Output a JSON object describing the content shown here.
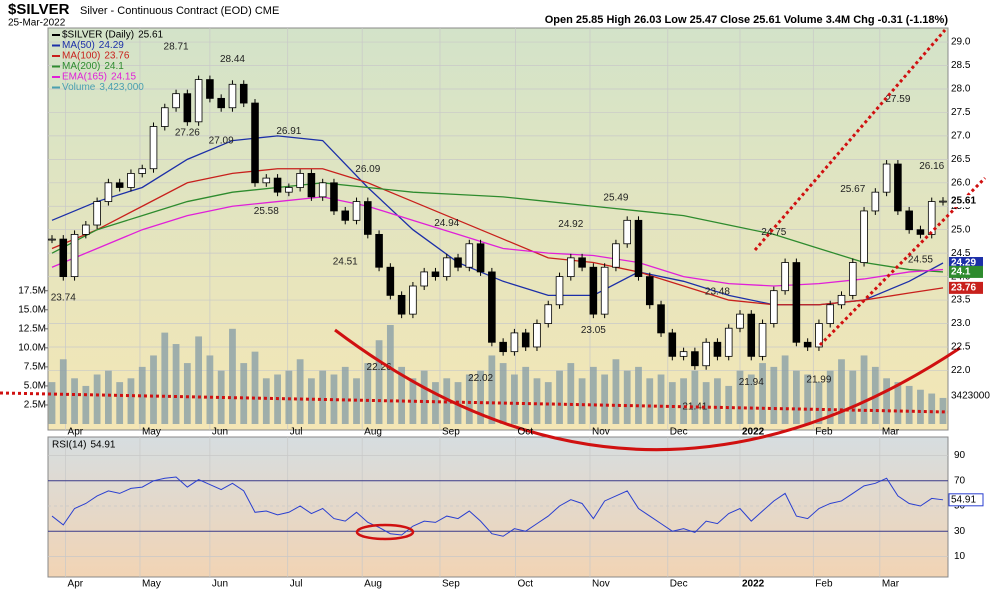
{
  "chart_data": {
    "type": "candlestick",
    "title": "$SILVER",
    "subtitle": "Silver - Continuous Contract (EOD) CME",
    "date": "25-Mar-2022",
    "quote": "Open 25.85  High 26.03  Low 25.47  Close 25.61  Volume 3.4M  Chg -0.31 (-1.18%)",
    "xlim": [
      0,
      79
    ],
    "xticks": [
      {
        "value": 1.2,
        "label": "Apr"
      },
      {
        "value": 7.8,
        "label": "May"
      },
      {
        "value": 14,
        "label": "Jun"
      },
      {
        "value": 20.9,
        "label": "Jul"
      },
      {
        "value": 27.5,
        "label": "Aug"
      },
      {
        "value": 34.4,
        "label": "Sep"
      },
      {
        "value": 41.1,
        "label": "Oct"
      },
      {
        "value": 47.7,
        "label": "Nov"
      },
      {
        "value": 54.6,
        "label": "Dec"
      },
      {
        "value": 61,
        "label": "2022"
      },
      {
        "value": 67.5,
        "label": "Feb"
      },
      {
        "value": 73.4,
        "label": "Mar"
      }
    ],
    "ylim": [
      20.73,
      29.3
    ],
    "yticks": [
      {
        "value": 22,
        "label": "22.0"
      },
      22.5,
      {
        "value": 23,
        "label": "23.0"
      },
      23.5,
      {
        "value": 24,
        "label": "24.0"
      },
      24.5,
      {
        "value": 25,
        "label": "25.0"
      },
      25.5,
      {
        "value": 26,
        "label": "26.0"
      },
      26.5,
      {
        "value": 27,
        "label": "27.0"
      },
      27.5,
      {
        "value": 28,
        "label": "28.0"
      },
      28.5,
      {
        "value": 29,
        "label": "29.0"
      }
    ],
    "grid": true,
    "price": {
      "name": "$SILVER (Daily)",
      "last": 25.61,
      "up_color": "#ffffff",
      "down_color": "#000000",
      "values": [
        24.8,
        24.0,
        24.9,
        25.1,
        25.6,
        26.0,
        25.9,
        26.2,
        26.3,
        27.2,
        27.6,
        27.9,
        27.3,
        28.2,
        27.8,
        27.6,
        28.1,
        27.7,
        26.0,
        26.1,
        25.8,
        25.9,
        26.2,
        25.7,
        26.0,
        25.4,
        25.2,
        25.6,
        24.9,
        24.2,
        23.6,
        23.2,
        23.8,
        24.1,
        24.0,
        24.4,
        24.2,
        24.7,
        24.1,
        22.6,
        22.4,
        22.8,
        22.5,
        23.0,
        23.4,
        24.0,
        24.4,
        24.2,
        23.2,
        24.2,
        24.7,
        25.2,
        24.0,
        23.4,
        22.8,
        22.3,
        22.4,
        22.1,
        22.6,
        22.3,
        22.9,
        23.2,
        22.3,
        23.0,
        23.7,
        24.3,
        22.6,
        22.5,
        23.0,
        23.4,
        23.6,
        24.3,
        25.4,
        25.8,
        26.4,
        25.4,
        25.0,
        24.9,
        25.6,
        25.61
      ]
    },
    "series": [
      {
        "name": "MA(50)",
        "last": 24.29,
        "color": "#1c2fa8",
        "x": [
          0,
          4,
          8,
          12,
          16,
          20,
          24,
          28,
          32,
          36,
          40,
          44,
          48,
          52,
          56,
          60,
          64,
          68,
          72,
          76,
          79
        ],
        "values": [
          25.2,
          25.6,
          25.9,
          26.5,
          26.9,
          27.0,
          26.9,
          25.9,
          25.0,
          24.3,
          23.9,
          23.6,
          23.6,
          24.1,
          23.9,
          23.6,
          23.4,
          23.4,
          23.5,
          23.9,
          24.29
        ]
      },
      {
        "name": "MA(100)",
        "last": 23.76,
        "color": "#c8201c",
        "x": [
          0,
          4,
          8,
          12,
          16,
          20,
          24,
          28,
          32,
          36,
          40,
          44,
          48,
          52,
          56,
          60,
          64,
          68,
          72,
          76,
          79
        ],
        "values": [
          24.6,
          25.0,
          25.5,
          26.0,
          26.2,
          26.3,
          26.3,
          26.0,
          25.6,
          25.2,
          24.8,
          24.4,
          24.3,
          24.1,
          23.8,
          23.5,
          23.4,
          23.4,
          23.5,
          23.65,
          23.76
        ]
      },
      {
        "name": "MA(200)",
        "last": 24.1,
        "color": "#2e8b2e",
        "x": [
          0,
          4,
          8,
          12,
          16,
          20,
          24,
          28,
          32,
          36,
          40,
          44,
          48,
          52,
          56,
          60,
          64,
          68,
          72,
          76,
          79
        ],
        "values": [
          24.5,
          25.0,
          25.3,
          25.6,
          25.8,
          25.9,
          26.0,
          25.9,
          25.8,
          25.75,
          25.7,
          25.6,
          25.5,
          25.4,
          25.3,
          25.1,
          24.9,
          24.6,
          24.3,
          24.15,
          24.1
        ]
      },
      {
        "name": "EMA(165)",
        "last": 24.15,
        "color": "#e020d8",
        "x": [
          0,
          4,
          8,
          12,
          16,
          20,
          24,
          28,
          32,
          36,
          40,
          44,
          48,
          52,
          56,
          60,
          64,
          68,
          72,
          76,
          79
        ],
        "values": [
          24.2,
          24.6,
          25.0,
          25.3,
          25.5,
          25.6,
          25.7,
          25.5,
          25.2,
          24.9,
          24.6,
          24.5,
          24.45,
          24.3,
          24.0,
          23.85,
          23.8,
          23.85,
          23.95,
          24.1,
          24.15
        ]
      }
    ],
    "volume": {
      "name": "Volume",
      "last_label": "3,423,000",
      "tag_label": "3423000",
      "color": "#8fa3a8",
      "ylim": [
        0,
        52
      ],
      "yticks": [
        {
          "value": 2.5,
          "label": "2.5M"
        },
        {
          "value": 5,
          "label": "5.0M"
        },
        {
          "value": 7.5,
          "label": "7.5M"
        },
        {
          "value": 10,
          "label": "10.0M"
        },
        {
          "value": 12.5,
          "label": "12.5M"
        },
        {
          "value": 15,
          "label": "15.0M"
        },
        {
          "value": 17.5,
          "label": "17.5M"
        }
      ],
      "values": [
        5.5,
        8.5,
        6.0,
        5.0,
        6.5,
        7.0,
        5.5,
        6.0,
        7.5,
        9.0,
        12.0,
        10.5,
        8.0,
        11.5,
        9.0,
        7.0,
        12.5,
        8.0,
        9.5,
        6.0,
        6.5,
        7.0,
        8.5,
        6.0,
        7.0,
        6.5,
        7.5,
        6.0,
        8.0,
        11.0,
        13.0,
        7.5,
        6.0,
        7.0,
        5.5,
        6.0,
        5.5,
        6.5,
        7.0,
        9.0,
        8.0,
        6.5,
        7.5,
        6.0,
        5.5,
        7.0,
        8.0,
        6.0,
        7.5,
        6.5,
        8.5,
        7.0,
        7.5,
        6.0,
        6.5,
        5.5,
        6.0,
        7.0,
        5.5,
        6.0,
        5.0,
        7.0,
        6.5,
        8.0,
        7.5,
        9.0,
        7.0,
        6.5,
        5.5,
        7.0,
        8.5,
        7.0,
        9.0,
        7.5,
        6.0,
        5.5,
        5.0,
        4.5,
        4.0,
        3.423
      ]
    },
    "annotations": [
      {
        "label": "23.74",
        "value": 23.74,
        "x": 1
      },
      {
        "label": "28.71",
        "value": 28.71,
        "x": 11
      },
      {
        "label": "27.26",
        "value": 27.26,
        "x": 12
      },
      {
        "label": "27.09",
        "value": 27.09,
        "x": 15
      },
      {
        "label": "28.44",
        "value": 28.44,
        "x": 16
      },
      {
        "label": "25.58",
        "value": 25.58,
        "x": 19
      },
      {
        "label": "26.91",
        "value": 26.91,
        "x": 21
      },
      {
        "label": "24.51",
        "value": 24.51,
        "x": 26
      },
      {
        "label": "26.09",
        "value": 26.09,
        "x": 28
      },
      {
        "label": "22.26",
        "value": 22.26,
        "x": 29
      },
      {
        "label": "24.94",
        "value": 24.94,
        "x": 35
      },
      {
        "label": "22.02",
        "value": 22.02,
        "x": 38
      },
      {
        "label": "24.92",
        "value": 24.92,
        "x": 46
      },
      {
        "label": "23.05",
        "value": 23.05,
        "x": 48
      },
      {
        "label": "25.49",
        "value": 25.49,
        "x": 50
      },
      {
        "label": "21.41",
        "value": 21.41,
        "x": 57
      },
      {
        "label": "23.48",
        "value": 23.48,
        "x": 59
      },
      {
        "label": "21.94",
        "value": 21.94,
        "x": 62
      },
      {
        "label": "24.75",
        "value": 24.75,
        "x": 64
      },
      {
        "label": "21.99",
        "value": 21.99,
        "x": 68
      },
      {
        "label": "25.67",
        "value": 25.67,
        "x": 71
      },
      {
        "label": "27.59",
        "value": 27.59,
        "x": 75
      },
      {
        "label": "24.55",
        "value": 24.55,
        "x": 77
      },
      {
        "label": "26.16",
        "value": 26.16,
        "x": 78
      }
    ],
    "rsi": {
      "name": "RSI(14)",
      "last": 54.91,
      "color": "#2a3fd0",
      "ylim": [
        0,
        100
      ],
      "yticks": [
        10,
        30,
        50,
        70,
        90
      ],
      "values": [
        42,
        35,
        48,
        52,
        58,
        62,
        60,
        64,
        65,
        70,
        72,
        73,
        65,
        71,
        67,
        63,
        68,
        62,
        45,
        46,
        43,
        45,
        50,
        44,
        48,
        40,
        38,
        45,
        37,
        33,
        28,
        27,
        34,
        38,
        37,
        42,
        40,
        46,
        38,
        28,
        26,
        32,
        30,
        36,
        42,
        50,
        55,
        52,
        40,
        54,
        58,
        62,
        48,
        42,
        36,
        30,
        32,
        29,
        38,
        36,
        44,
        48,
        38,
        46,
        54,
        60,
        42,
        40,
        48,
        52,
        54,
        60,
        66,
        68,
        72,
        58,
        52,
        50,
        56,
        54.91
      ]
    }
  }
}
